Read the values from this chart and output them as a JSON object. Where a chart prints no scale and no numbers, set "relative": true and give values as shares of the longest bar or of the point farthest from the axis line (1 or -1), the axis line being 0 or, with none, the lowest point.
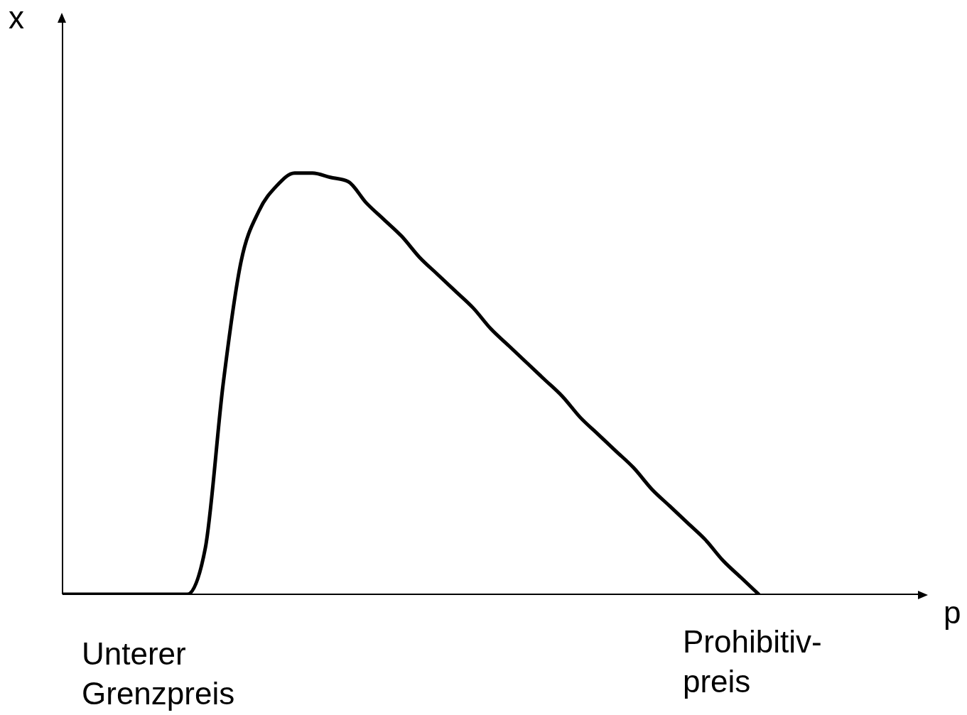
{
  "chart_data": {
    "type": "line",
    "relative": true,
    "xlabel": "p",
    "ylabel": "x",
    "color": "#000000",
    "categories": [
      null,
      null,
      null,
      null,
      null,
      null,
      null,
      null,
      null,
      null,
      null,
      null,
      null,
      null,
      null,
      null,
      null,
      null,
      null,
      null,
      null,
      null,
      null,
      null,
      null,
      null,
      null,
      null,
      null,
      null,
      null,
      null,
      null,
      null,
      null,
      null,
      null,
      null,
      null,
      null,
      null,
      null,
      null,
      null,
      null,
      null,
      null,
      null,
      null
    ],
    "values": [
      0,
      0,
      0,
      0,
      0,
      0,
      0,
      0,
      0.11,
      0.5,
      0.79,
      0.91,
      0.97,
      1,
      1,
      0.99,
      0.98,
      0.93,
      0.89,
      0.85,
      0.8,
      0.76,
      0.72,
      0.68,
      0.63,
      0.59,
      0.55,
      0.51,
      0.47,
      0.42,
      0.38,
      0.34,
      0.3,
      0.25,
      0.21,
      0.17,
      0.13,
      0.08,
      0.04,
      0,
      null,
      null,
      null,
      null,
      null,
      null,
      null,
      null,
      null
    ],
    "annotations": [
      "Unterer Grenzpreis",
      "Prohibitiv-preis"
    ],
    "grid": false,
    "legend": false,
    "marker": "none",
    "line_style": "solid"
  }
}
